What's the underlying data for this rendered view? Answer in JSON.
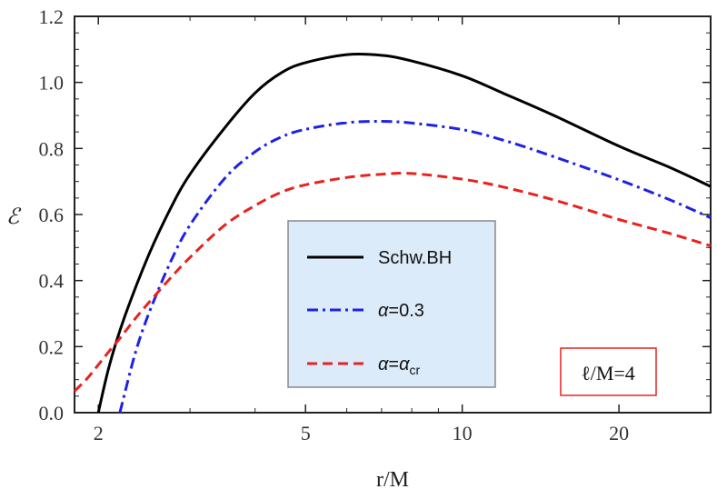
{
  "chart_data": {
    "type": "line",
    "xlabel": "r/M",
    "ylabel": "ℰ",
    "x_scale": "log",
    "xlim": [
      1.8,
      30
    ],
    "ylim": [
      0,
      1.2
    ],
    "x_ticks": [
      {
        "value": 2,
        "label": "2"
      },
      {
        "value": 5,
        "label": "5"
      },
      {
        "value": 10,
        "label": "10"
      },
      {
        "value": 20,
        "label": "20"
      }
    ],
    "y_ticks": [
      {
        "value": 0.0,
        "label": "0.0"
      },
      {
        "value": 0.2,
        "label": "0.2"
      },
      {
        "value": 0.4,
        "label": "0.4"
      },
      {
        "value": 0.6,
        "label": "0.6"
      },
      {
        "value": 0.8,
        "label": "0.8"
      },
      {
        "value": 1.0,
        "label": "1.0"
      },
      {
        "value": 1.2,
        "label": "1.2"
      }
    ],
    "series": [
      {
        "name": "Schw.BH",
        "color": "#000000",
        "dash": "solid",
        "x": [
          2.0,
          2.1,
          2.25,
          2.5,
          2.75,
          3.0,
          3.5,
          4.0,
          4.5,
          5.0,
          6.0,
          7.0,
          8.0,
          10.0,
          12.0,
          15.0,
          20.0,
          25.0,
          30.0
        ],
        "y": [
          0.0,
          0.143,
          0.293,
          0.478,
          0.617,
          0.722,
          0.863,
          0.968,
          1.03,
          1.06,
          1.084,
          1.082,
          1.065,
          1.02,
          0.967,
          0.9,
          0.807,
          0.743,
          0.685
        ]
      },
      {
        "name": "α=0.3",
        "name_parts": {
          "symbol": "α",
          "rest": "=0.3"
        },
        "color": "#1f22e6",
        "dash": "dashdot",
        "x": [
          2.2,
          2.35,
          2.5,
          2.75,
          3.0,
          3.5,
          4.0,
          4.5,
          5.0,
          6.0,
          7.0,
          8.0,
          10.0,
          12.0,
          15.0,
          20.0,
          25.0,
          30.0
        ],
        "y": [
          0.0,
          0.175,
          0.3,
          0.455,
          0.568,
          0.71,
          0.79,
          0.835,
          0.858,
          0.878,
          0.882,
          0.877,
          0.857,
          0.825,
          0.775,
          0.705,
          0.645,
          0.59
        ]
      },
      {
        "name": "α=αcr",
        "name_parts": {
          "symbol": "α",
          "mid": "=",
          "symbol2": "α",
          "subscript": "cr"
        },
        "color": "#e8221f",
        "dash": "dashed",
        "x": [
          1.8,
          1.9,
          2.0,
          2.1,
          2.2,
          2.35,
          2.5,
          2.75,
          3.0,
          3.5,
          4.0,
          4.5,
          5.0,
          6.0,
          7.0,
          8.0,
          10.0,
          12.0,
          15.0,
          20.0,
          25.0,
          30.0
        ],
        "y": [
          0.065,
          0.102,
          0.145,
          0.187,
          0.225,
          0.283,
          0.333,
          0.407,
          0.47,
          0.568,
          0.627,
          0.668,
          0.69,
          0.712,
          0.722,
          0.724,
          0.707,
          0.683,
          0.644,
          0.585,
          0.543,
          0.505
        ]
      }
    ],
    "legend": {
      "placement": "lower-center",
      "background": "#dcebfa"
    },
    "annotation": {
      "text": "ℓ/M=4",
      "placement": "bottom-right",
      "border_color": "#e8221f"
    },
    "grid": false
  }
}
